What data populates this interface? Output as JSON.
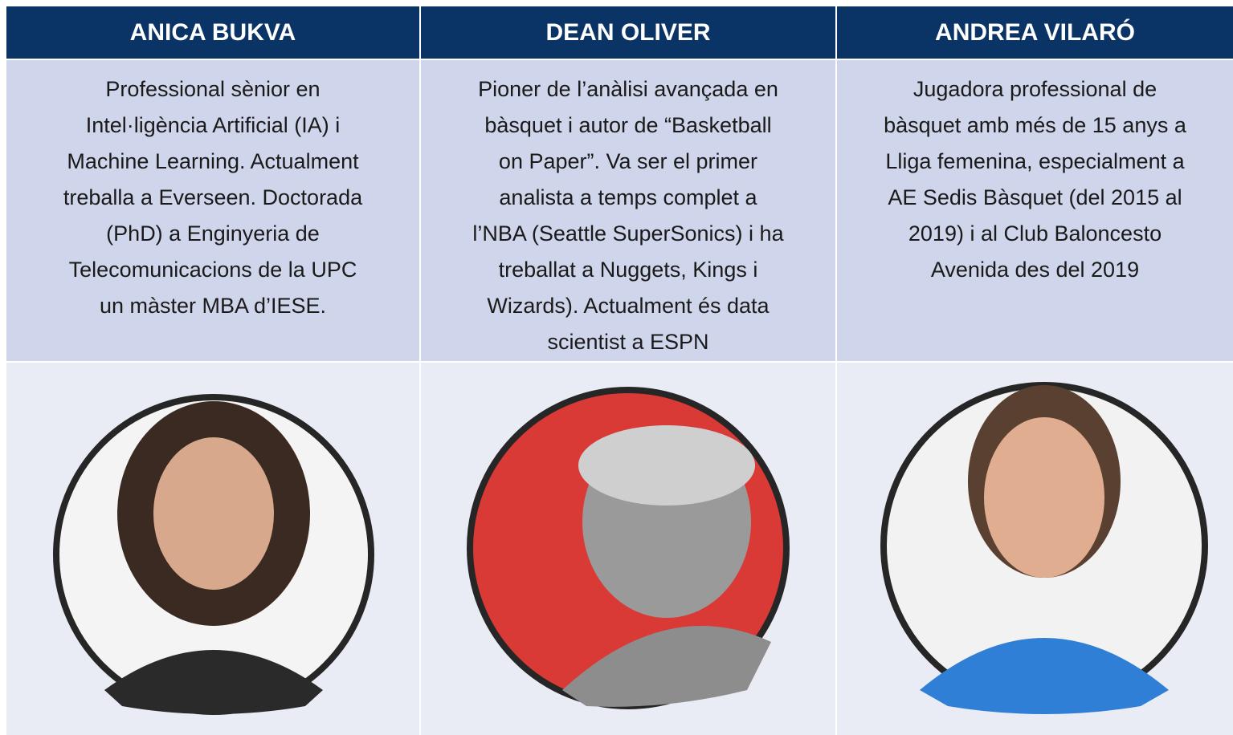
{
  "columns": [
    {
      "name": "ANICA BUKVA",
      "bio": [
        "Professional sènior en",
        "Intel·ligència Artificial (IA) i",
        "Machine Learning. Actualment",
        "treballa a Everseen. Doctorada",
        "(PhD) a Enginyeria de",
        "Telecomunicacions de la UPC",
        "un màster MBA d’IESE."
      ]
    },
    {
      "name": "DEAN OLIVER",
      "bio": [
        "Pioner de l’anàlisi avançada en",
        "bàsquet i autor de “Basketball",
        "on Paper”. Va ser el primer",
        "analista a temps complet a",
        "l’NBA (Seattle SuperSonics) i ha",
        "treballat a Nuggets, Kings i",
        "Wizards). Actualment és data",
        "scientist a ESPN"
      ]
    },
    {
      "name": "ANDREA VILARÓ",
      "bio": [
        "Jugadora professional de",
        "bàsquet amb més de 15 anys a",
        "Lliga femenina, especialment a",
        "AE Sedis Bàsquet (del 2015 al",
        "2019) i al Club Baloncesto",
        "Avenida des del 2019"
      ]
    }
  ]
}
